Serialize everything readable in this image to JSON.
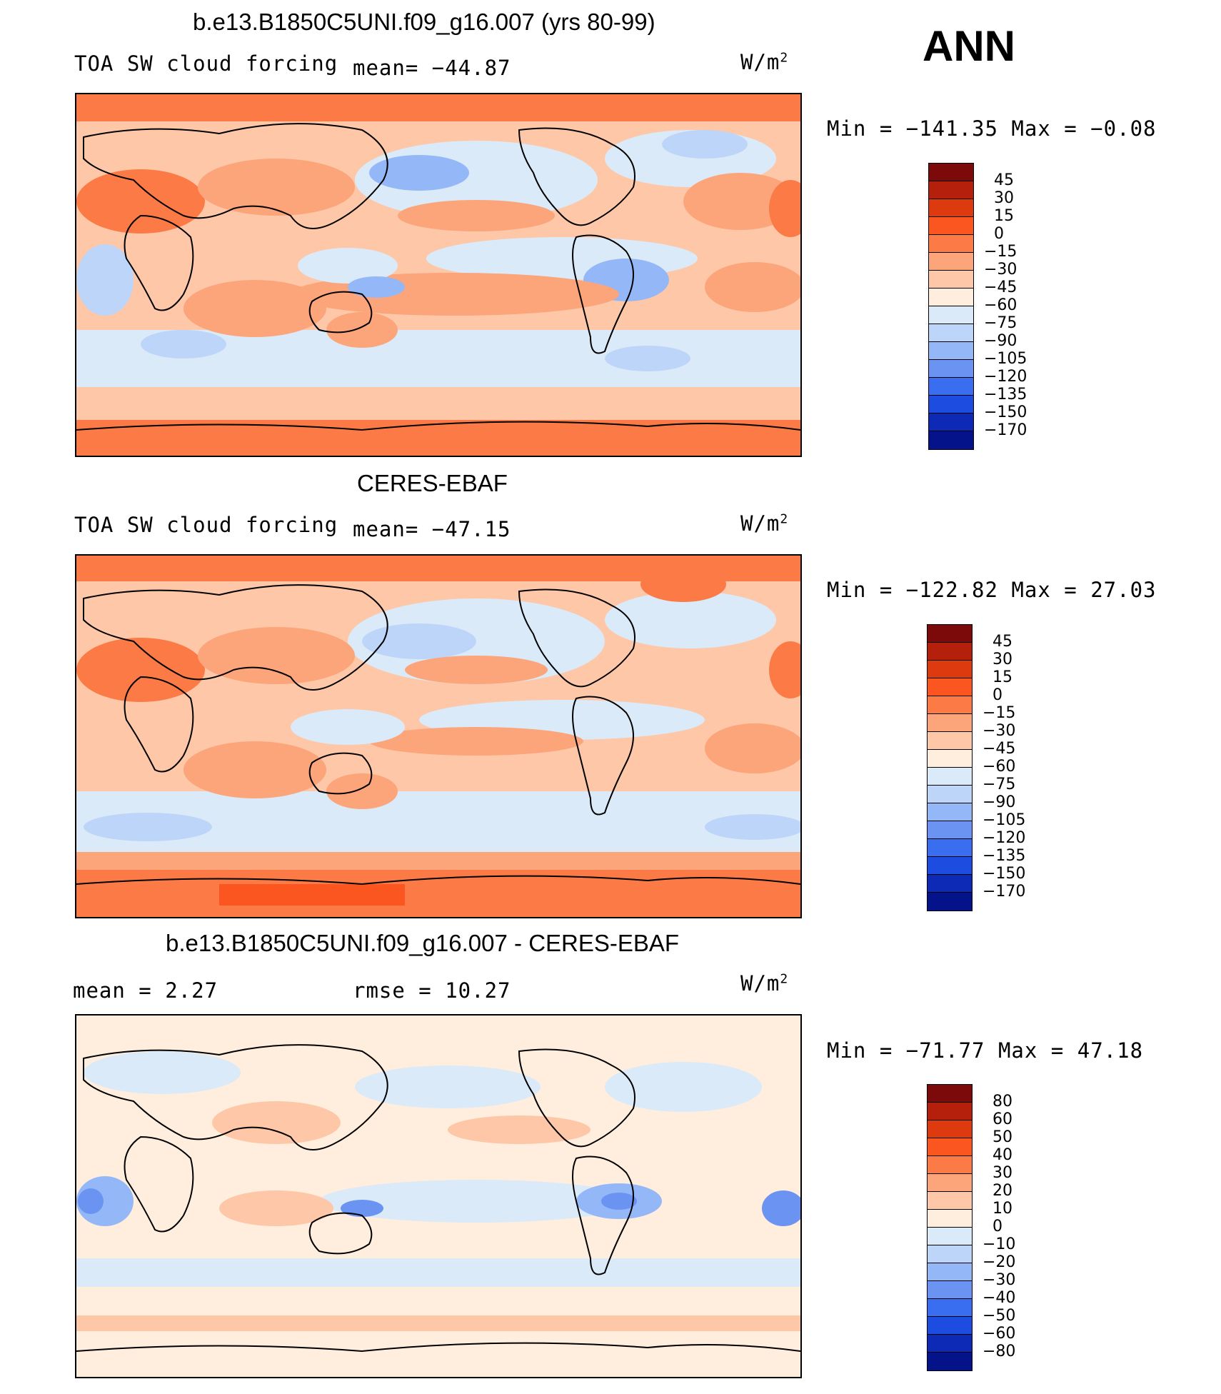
{
  "season": "ANN",
  "units_text": "W/m",
  "units_sup": "2",
  "panels": [
    {
      "title": "b.e13.B1850C5UNI.f09_g16.007 (yrs 80-99)",
      "left_label": "TOA SW cloud forcing",
      "mid_label": "mean= −44.87",
      "minmax": "Min  =  −141.35  Max  =    −0.08",
      "scale": "abs"
    },
    {
      "title": "CERES-EBAF",
      "left_label": "TOA SW cloud forcing",
      "mid_label": "mean= −47.15",
      "minmax": "Min  =  −122.82  Max  =    27.03",
      "scale": "abs"
    },
    {
      "title": "b.e13.B1850C5UNI.f09_g16.007 - CERES-EBAF",
      "left_label": "mean  =     2.27",
      "mid_label": "rmse  =    10.27",
      "minmax": "Min  =  −71.77  Max  =    47.18",
      "scale": "diff"
    }
  ],
  "colorbars": {
    "abs": {
      "levels": [
        "45",
        "30",
        "15",
        "0",
        "−15",
        "−30",
        "−45",
        "−60",
        "−75",
        "−90",
        "−105",
        "−120",
        "−135",
        "−150",
        "−170"
      ],
      "colors": [
        "#7d0a0a",
        "#b5200d",
        "#de3a10",
        "#fb5520",
        "#fb7a45",
        "#fca47a",
        "#fdc7a8",
        "#ffeedd",
        "#dbeaf8",
        "#bcd5f8",
        "#94b8f7",
        "#6b94f2",
        "#3a6ef0",
        "#1d4ce0",
        "#0c2ab5",
        "#04138a"
      ]
    },
    "diff": {
      "levels": [
        "80",
        "60",
        "50",
        "40",
        "30",
        "20",
        "10",
        "0",
        "−10",
        "−20",
        "−30",
        "−40",
        "−50",
        "−60",
        "−80"
      ],
      "colors": [
        "#7d0a0a",
        "#b5200d",
        "#de3a10",
        "#fb5520",
        "#fb7a45",
        "#fca47a",
        "#fdc7a8",
        "#ffeedd",
        "#dbeaf8",
        "#bcd5f8",
        "#94b8f7",
        "#6b94f2",
        "#3a6ef0",
        "#1d4ce0",
        "#0c2ab5",
        "#04138a"
      ]
    }
  }
}
